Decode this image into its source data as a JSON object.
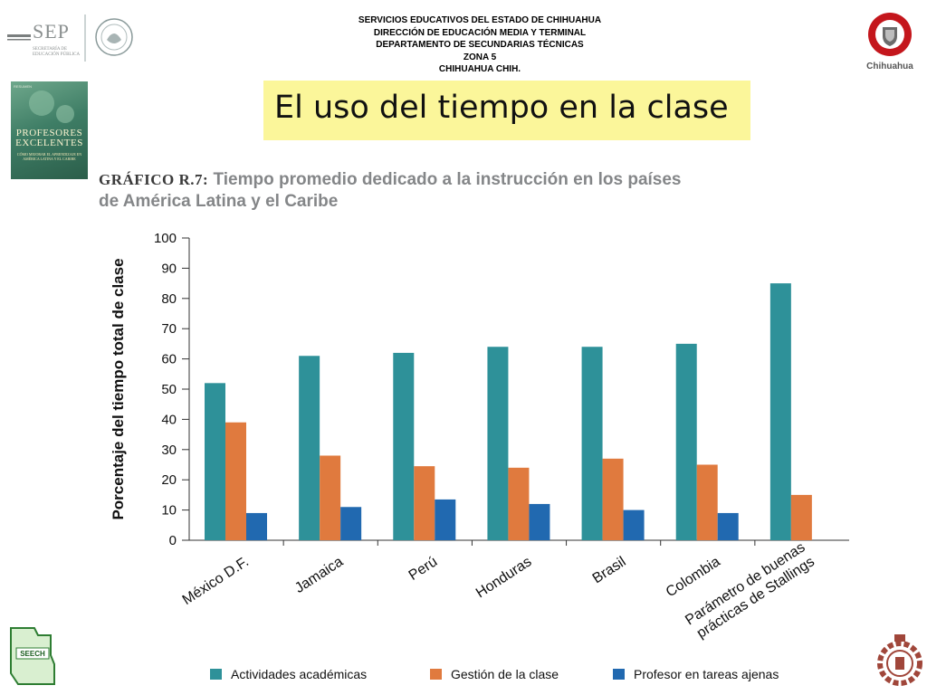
{
  "header": {
    "lines": [
      "SERVICIOS EDUCATIVOS DEL ESTADO DE CHIHUAHUA",
      "DIRECCIÓN DE EDUCACIÓN MEDIA Y TERMINAL",
      "DEPARTAMENTO DE SECUNDARIAS TÉCNICAS",
      "ZONA 5",
      "CHIHUAHUA CHIH."
    ]
  },
  "logos": {
    "sep_text": "SEP",
    "sep_sub_1": "SECRETARÍA DE",
    "sep_sub_2": "EDUCACIÓN PÚBLICA",
    "chihuahua_text": "Chihuahua",
    "seech_text": "SEECH"
  },
  "book": {
    "top_text": "RESUMEN",
    "title_1": "PROFESORES",
    "title_2": "EXCELENTES",
    "subtitle": "CÓMO MEJORAR EL APRENDIZAJE EN AMÉRICA LATINA Y EL CARIBE"
  },
  "slide_title": "El uso del tiempo en la clase",
  "chart_heading": {
    "label": "GRÁFICO R.7:",
    "text_1": " Tiempo promedio dedicado a la instrucción en los países",
    "text_2": "de América Latina y el Caribe"
  },
  "colors": {
    "academic": "#2e9199",
    "management": "#e07a3e",
    "other": "#2169b0",
    "title_bg": "#fbf69a"
  },
  "chart_data": {
    "type": "bar",
    "title": "Tiempo promedio dedicado a la instrucción en los países de América Latina y el Caribe",
    "xlabel": "",
    "ylabel": "Porcentaje del tiempo total de clase",
    "ylim": [
      0,
      100
    ],
    "yticks": [
      0,
      10,
      20,
      30,
      40,
      50,
      60,
      70,
      80,
      90,
      100
    ],
    "grid": false,
    "legend": "bottom",
    "categories": [
      "México D.F.",
      "Jamaica",
      "Perú",
      "Honduras",
      "Brasil",
      "Colombia",
      "Parámetro de buenas prácticas de Stallings"
    ],
    "category_lines": [
      [
        "México D.F."
      ],
      [
        "Jamaica"
      ],
      [
        "Perú"
      ],
      [
        "Honduras"
      ],
      [
        "Brasil"
      ],
      [
        "Colombia"
      ],
      [
        "Parámetro de buenas",
        "prácticas de Stallings"
      ]
    ],
    "series": [
      {
        "name": "Actividades académicas",
        "color": "#2e9199",
        "values": [
          52,
          61,
          62,
          64,
          64,
          65,
          85
        ]
      },
      {
        "name": "Gestión de la clase",
        "color": "#e07a3e",
        "values": [
          39,
          28,
          24.5,
          24,
          27,
          25,
          15
        ]
      },
      {
        "name": "Profesor en tareas ajenas",
        "color": "#2169b0",
        "values": [
          9,
          11,
          13.5,
          12,
          10,
          9,
          null
        ]
      }
    ]
  }
}
